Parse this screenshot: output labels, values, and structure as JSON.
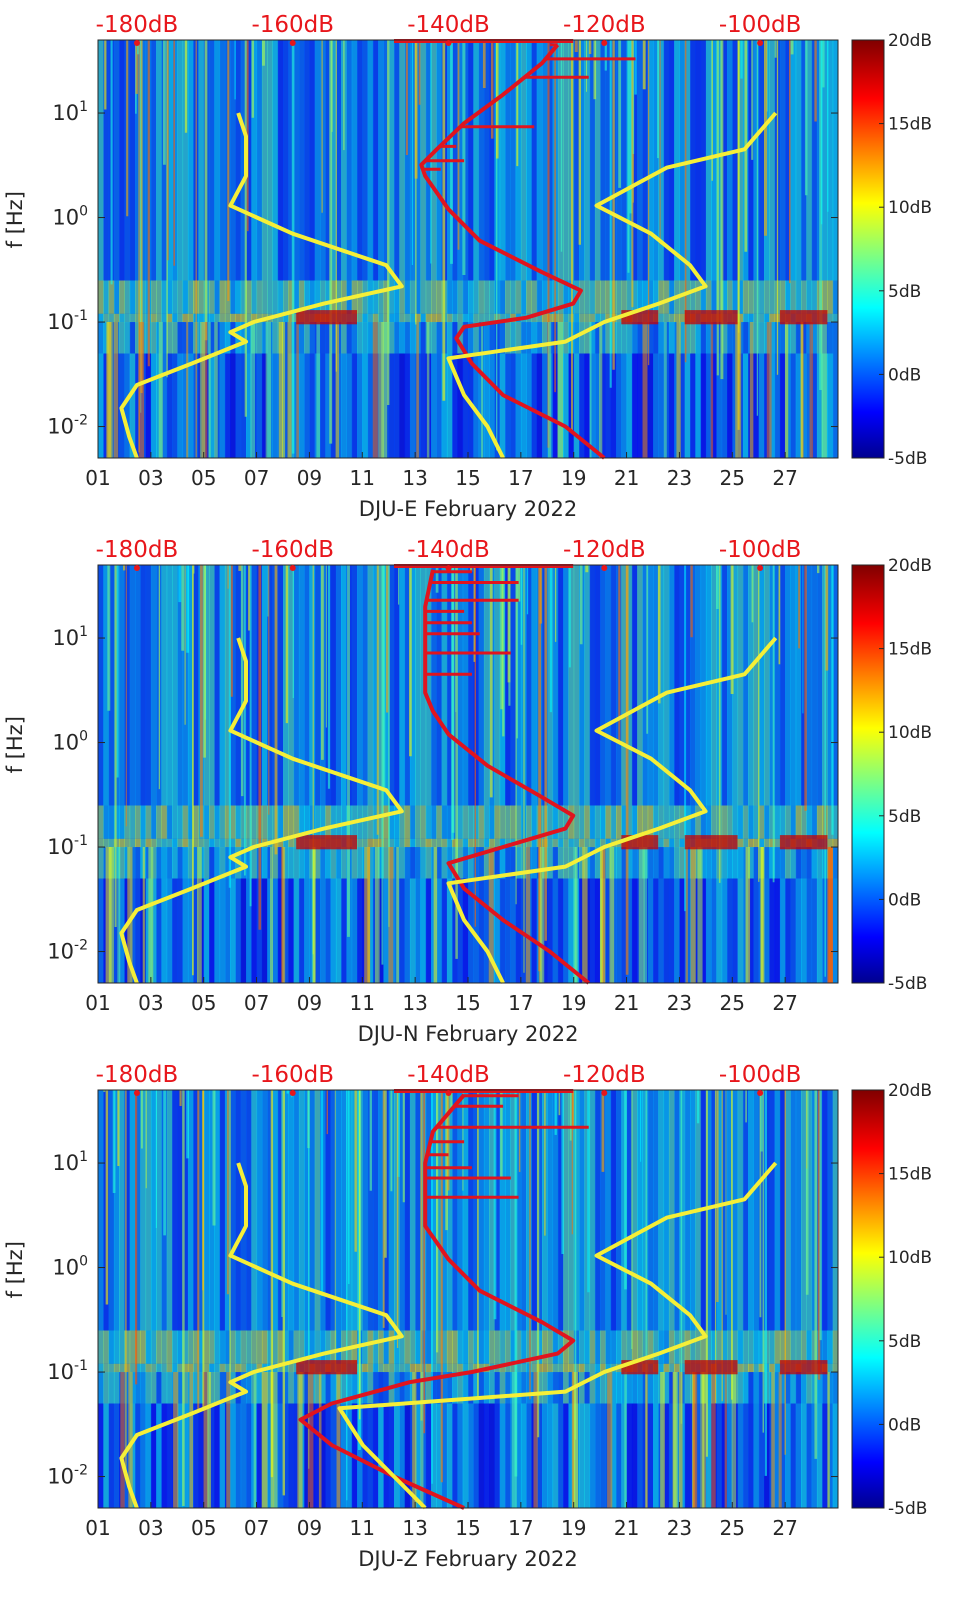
{
  "colors": {
    "top_scale_text": "#e8161b",
    "red_curve": "#e0141e",
    "yellow_curve": "#f5ef38",
    "axis_text": "#262626"
  },
  "chart_data": [
    {
      "type": "heatmap",
      "xlabel": "DJU-E February 2022",
      "ylabel": "f [Hz]",
      "x_range_days": [
        1,
        29
      ],
      "x_tick_labels": [
        "01",
        "03",
        "05",
        "07",
        "09",
        "11",
        "13",
        "15",
        "17",
        "19",
        "21",
        "23",
        "25",
        "27"
      ],
      "y_scale": "log",
      "y_range_hz": [
        0.005,
        50
      ],
      "y_tick_labels": [
        "10^-2",
        "10^-1",
        "10^0",
        "10^1"
      ],
      "top_axis_labels": [
        "-180dB",
        "-160dB",
        "-140dB",
        "-120dB",
        "-100dB"
      ],
      "top_axis_range_db": [
        -185,
        -90
      ],
      "colorbar": {
        "colormap": "jet",
        "range_db": [
          -5,
          20
        ],
        "tick_labels": [
          "-5dB",
          "0dB",
          "5dB",
          "10dB",
          "15dB",
          "20dB"
        ]
      },
      "series": [
        {
          "color": "red",
          "values_db_vs_freq_hz": [
            [
              0.005,
              -120
            ],
            [
              0.01,
              -125
            ],
            [
              0.02,
              -133
            ],
            [
              0.04,
              -137
            ],
            [
              0.07,
              -139
            ],
            [
              0.09,
              -138
            ],
            [
              0.11,
              -130
            ],
            [
              0.15,
              -124
            ],
            [
              0.2,
              -123
            ],
            [
              0.3,
              -128
            ],
            [
              0.6,
              -136
            ],
            [
              1.2,
              -140
            ],
            [
              2.5,
              -143
            ],
            [
              3.2,
              -143.5
            ],
            [
              4.5,
              -141.5
            ],
            [
              8,
              -138
            ],
            [
              15,
              -133
            ],
            [
              30,
              -128
            ],
            [
              45,
              -126
            ]
          ]
        },
        {
          "color": "yellow",
          "values_db_vs_freq_hz": [
            [
              0.005,
              -180
            ],
            [
              0.008,
              -181
            ],
            [
              0.015,
              -182
            ],
            [
              0.025,
              -180
            ],
            [
              0.04,
              -173
            ],
            [
              0.065,
              -166
            ],
            [
              0.08,
              -168
            ],
            [
              0.1,
              -165
            ],
            [
              0.15,
              -156
            ],
            [
              0.22,
              -146
            ],
            [
              0.35,
              -148
            ],
            [
              0.7,
              -160
            ],
            [
              1.3,
              -168
            ],
            [
              2.5,
              -166
            ],
            [
              6,
              -166
            ],
            [
              10,
              -167
            ]
          ]
        },
        {
          "color": "yellow",
          "values_db_vs_freq_hz": [
            [
              0.005,
              -133
            ],
            [
              0.01,
              -135
            ],
            [
              0.02,
              -138
            ],
            [
              0.045,
              -140
            ],
            [
              0.065,
              -125
            ],
            [
              0.1,
              -120
            ],
            [
              0.15,
              -113
            ],
            [
              0.22,
              -107
            ],
            [
              0.35,
              -109
            ],
            [
              0.7,
              -114
            ],
            [
              1.3,
              -121
            ],
            [
              3,
              -112
            ],
            [
              4.5,
              -102
            ],
            [
              10,
              -98
            ]
          ]
        }
      ],
      "red_spike_freqs_hz": [
        2.9,
        3.5,
        4.8,
        7.4,
        22,
        33,
        45
      ],
      "red_spike_max_db": [
        -141,
        -138,
        -139,
        -129,
        -122,
        -116,
        -127
      ]
    },
    {
      "type": "heatmap",
      "xlabel": "DJU-N February 2022",
      "ylabel": "f [Hz]",
      "x_range_days": [
        1,
        29
      ],
      "x_tick_labels": [
        "01",
        "03",
        "05",
        "07",
        "09",
        "11",
        "13",
        "15",
        "17",
        "19",
        "21",
        "23",
        "25",
        "27"
      ],
      "y_scale": "log",
      "y_range_hz": [
        0.005,
        50
      ],
      "y_tick_labels": [
        "10^-2",
        "10^-1",
        "10^0",
        "10^1"
      ],
      "top_axis_labels": [
        "-180dB",
        "-160dB",
        "-140dB",
        "-120dB",
        "-100dB"
      ],
      "top_axis_range_db": [
        -185,
        -90
      ],
      "colorbar": {
        "colormap": "jet",
        "range_db": [
          -5,
          20
        ],
        "tick_labels": [
          "-5dB",
          "0dB",
          "5dB",
          "10dB",
          "15dB",
          "20dB"
        ]
      },
      "series": [
        {
          "color": "red",
          "values_db_vs_freq_hz": [
            [
              0.005,
              -122
            ],
            [
              0.01,
              -127
            ],
            [
              0.02,
              -133
            ],
            [
              0.04,
              -138
            ],
            [
              0.07,
              -140
            ],
            [
              0.1,
              -133
            ],
            [
              0.15,
              -125
            ],
            [
              0.2,
              -124
            ],
            [
              0.3,
              -128
            ],
            [
              0.6,
              -135
            ],
            [
              1.2,
              -140
            ],
            [
              2,
              -142
            ],
            [
              3,
              -143
            ],
            [
              5,
              -143
            ],
            [
              10,
              -143
            ],
            [
              20,
              -143
            ],
            [
              45,
              -142
            ]
          ]
        },
        {
          "color": "yellow",
          "values_db_vs_freq_hz": [
            [
              0.005,
              -180
            ],
            [
              0.008,
              -181
            ],
            [
              0.015,
              -182
            ],
            [
              0.025,
              -180
            ],
            [
              0.04,
              -173
            ],
            [
              0.065,
              -166
            ],
            [
              0.08,
              -168
            ],
            [
              0.1,
              -165
            ],
            [
              0.15,
              -156
            ],
            [
              0.22,
              -146
            ],
            [
              0.35,
              -148
            ],
            [
              0.7,
              -160
            ],
            [
              1.3,
              -168
            ],
            [
              2.5,
              -166
            ],
            [
              6,
              -166
            ],
            [
              10,
              -167
            ]
          ]
        },
        {
          "color": "yellow",
          "values_db_vs_freq_hz": [
            [
              0.005,
              -133
            ],
            [
              0.01,
              -135
            ],
            [
              0.02,
              -138
            ],
            [
              0.045,
              -140
            ],
            [
              0.065,
              -125
            ],
            [
              0.1,
              -120
            ],
            [
              0.15,
              -113
            ],
            [
              0.22,
              -107
            ],
            [
              0.35,
              -109
            ],
            [
              0.7,
              -114
            ],
            [
              1.3,
              -121
            ],
            [
              3,
              -112
            ],
            [
              4.5,
              -102
            ],
            [
              10,
              -98
            ]
          ]
        }
      ],
      "red_spike_freqs_hz": [
        4.5,
        7.2,
        11,
        14,
        18,
        23,
        34,
        43
      ],
      "red_spike_max_db": [
        -137,
        -132,
        -136,
        -137,
        -138,
        -131,
        -131,
        -137
      ]
    },
    {
      "type": "heatmap",
      "xlabel": "DJU-Z February 2022",
      "ylabel": "f [Hz]",
      "x_range_days": [
        1,
        29
      ],
      "x_tick_labels": [
        "01",
        "03",
        "05",
        "07",
        "09",
        "11",
        "13",
        "15",
        "17",
        "19",
        "21",
        "23",
        "25",
        "27"
      ],
      "y_scale": "log",
      "y_range_hz": [
        0.005,
        50
      ],
      "y_tick_labels": [
        "10^-2",
        "10^-1",
        "10^0",
        "10^1"
      ],
      "top_axis_labels": [
        "-180dB",
        "-160dB",
        "-140dB",
        "-120dB",
        "-100dB"
      ],
      "top_axis_range_db": [
        -185,
        -90
      ],
      "colorbar": {
        "colormap": "jet",
        "range_db": [
          -5,
          20
        ],
        "tick_labels": [
          "-5dB",
          "0dB",
          "5dB",
          "10dB",
          "15dB",
          "20dB"
        ]
      },
      "series": [
        {
          "color": "red",
          "values_db_vs_freq_hz": [
            [
              0.005,
              -138
            ],
            [
              0.01,
              -147
            ],
            [
              0.02,
              -155
            ],
            [
              0.035,
              -159
            ],
            [
              0.05,
              -155
            ],
            [
              0.08,
              -145
            ],
            [
              0.1,
              -137
            ],
            [
              0.15,
              -126
            ],
            [
              0.2,
              -124
            ],
            [
              0.3,
              -128
            ],
            [
              0.6,
              -136
            ],
            [
              1.2,
              -140
            ],
            [
              2.5,
              -143
            ],
            [
              5,
              -143
            ],
            [
              10,
              -143
            ],
            [
              20,
              -142
            ],
            [
              45,
              -138
            ]
          ]
        },
        {
          "color": "yellow",
          "values_db_vs_freq_hz": [
            [
              0.005,
              -180
            ],
            [
              0.008,
              -181
            ],
            [
              0.015,
              -182
            ],
            [
              0.025,
              -180
            ],
            [
              0.04,
              -173
            ],
            [
              0.065,
              -166
            ],
            [
              0.08,
              -168
            ],
            [
              0.1,
              -165
            ],
            [
              0.15,
              -156
            ],
            [
              0.22,
              -146
            ],
            [
              0.35,
              -148
            ],
            [
              0.7,
              -160
            ],
            [
              1.3,
              -168
            ],
            [
              2.5,
              -166
            ],
            [
              6,
              -166
            ],
            [
              10,
              -167
            ]
          ]
        },
        {
          "color": "yellow",
          "values_db_vs_freq_hz": [
            [
              0.005,
              -143
            ],
            [
              0.01,
              -147
            ],
            [
              0.02,
              -151
            ],
            [
              0.045,
              -154
            ],
            [
              0.065,
              -125
            ],
            [
              0.1,
              -120
            ],
            [
              0.15,
              -113
            ],
            [
              0.22,
              -107
            ],
            [
              0.35,
              -109
            ],
            [
              0.7,
              -114
            ],
            [
              1.3,
              -121
            ],
            [
              3,
              -112
            ],
            [
              4.5,
              -102
            ],
            [
              10,
              -98
            ]
          ]
        }
      ],
      "red_spike_freqs_hz": [
        4.7,
        7.2,
        9,
        12,
        16,
        22,
        35,
        44
      ],
      "red_spike_max_db": [
        -131,
        -132,
        -137,
        -140,
        -138,
        -122,
        -133,
        -131
      ]
    }
  ]
}
